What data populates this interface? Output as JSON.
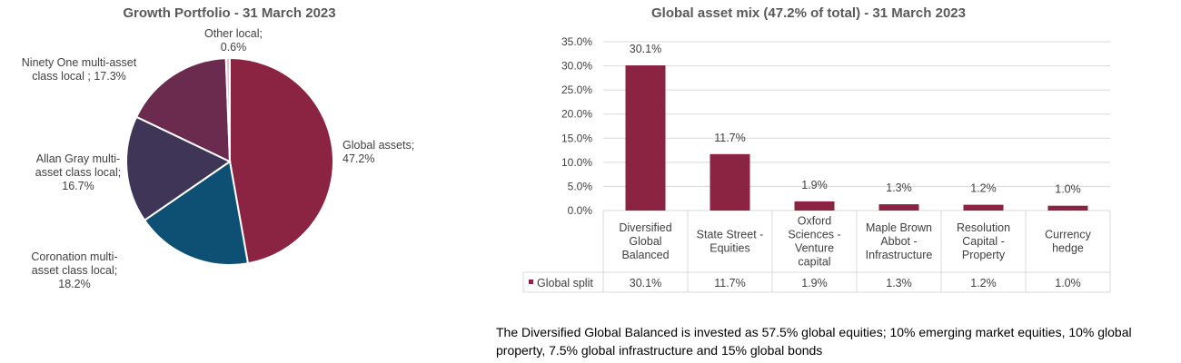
{
  "chart_data": [
    {
      "type": "pie",
      "title": "Growth Portfolio  - 31 March 2023",
      "slices": [
        {
          "name": "Global assets;",
          "value": 47.2,
          "label": "47.2%",
          "color": "#8b2343"
        },
        {
          "name": "Coronation multi-asset class local;",
          "value": 18.2,
          "label": "18.2%",
          "color": "#0e4f74"
        },
        {
          "name": "Allan Gray multi-asset class local;",
          "value": 16.7,
          "label": "16.7%",
          "color": "#3f3557"
        },
        {
          "name": "Ninety One multi-asset class local ;",
          "value": 17.3,
          "label": "17.3%",
          "color": "#6b2b4f"
        },
        {
          "name": "Other local;",
          "value": 0.6,
          "label": "0.6%",
          "color": "#d9c8cf"
        }
      ]
    },
    {
      "type": "bar",
      "title": "Global asset mix (47.2% of total) - 31 March 2023",
      "categories": [
        "Diversified Global Balanced",
        "State Street - Equities",
        "Oxford Sciences - Venture capital",
        "Maple Brown Abbot - Infrastructure",
        "Resolution Capital - Property",
        "Currency hedge"
      ],
      "series": [
        {
          "name": "Global split",
          "values": [
            30.1,
            11.7,
            1.9,
            1.3,
            1.2,
            1.0
          ],
          "labels": [
            "30.1%",
            "11.7%",
            "1.9%",
            "1.3%",
            "1.2%",
            "1.0%"
          ],
          "color": "#8b2343"
        }
      ],
      "ylim": [
        0,
        35
      ],
      "yticks": [
        "0.0%",
        "5.0%",
        "10.0%",
        "15.0%",
        "20.0%",
        "25.0%",
        "30.0%",
        "35.0%"
      ],
      "grid": true,
      "legend": "data-table"
    }
  ],
  "footnote": "The Diversified Global Balanced is invested as 57.5% global equities; 10% emerging market equities, 10% global property, 7.5% global infrastructure and 15% global bonds"
}
